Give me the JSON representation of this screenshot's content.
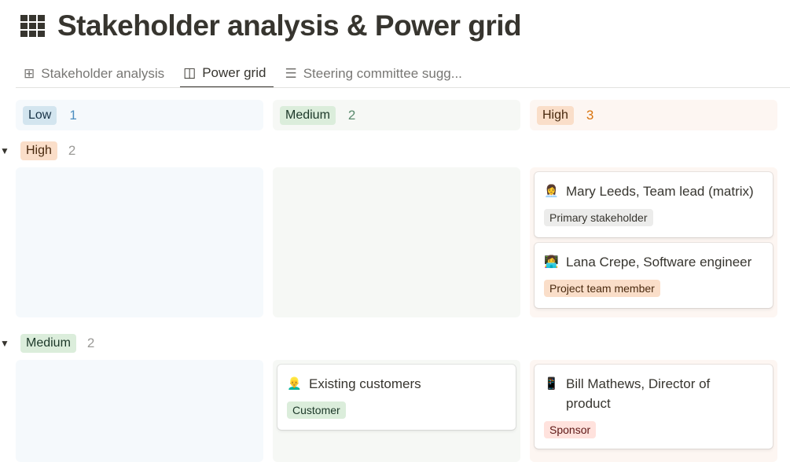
{
  "title": "Stakeholder analysis & Power grid",
  "tabs": [
    {
      "label": "Stakeholder analysis",
      "icon": "table-icon"
    },
    {
      "label": "Power grid",
      "icon": "board-icon",
      "active": true
    },
    {
      "label": "Steering committee sugg...",
      "icon": "list-icon"
    }
  ],
  "columns": [
    {
      "label": "Low",
      "count": "1",
      "bg": "#f5f9fc",
      "pill": "#d3e5ef",
      "text": "#183347",
      "countColor": "#4c8ec0"
    },
    {
      "label": "Medium",
      "count": "2",
      "bg": "#f6f8f5",
      "pill": "#dbeddb",
      "text": "#1c3829",
      "countColor": "#5a8a6d"
    },
    {
      "label": "High",
      "count": "3",
      "bg": "#fdf6f2",
      "pill": "#fadec9",
      "text": "#49290e",
      "countColor": "#d9730d"
    }
  ],
  "groups": [
    {
      "label": "High",
      "count": "2"
    },
    {
      "label": "Medium",
      "count": "2"
    }
  ],
  "cards": {
    "mary": {
      "emoji": "👩‍💼",
      "title": "Mary Leeds, Team lead (matrix)",
      "tag": "Primary stakeholder"
    },
    "lana": {
      "emoji": "👩‍💻",
      "title": "Lana Crepe, Software engineer",
      "tag": "Project team member"
    },
    "customers": {
      "emoji": "👱‍♂️",
      "title": "Existing customers",
      "tag": "Customer"
    },
    "bill": {
      "emoji": "📱",
      "title": "Bill Mathews, Director of product",
      "tag": "Sponsor"
    }
  },
  "tagColors": {
    "Primary stakeholder": "#ececeb",
    "Project team member": "#fadec9",
    "Customer": "#dbeddb",
    "Sponsor": "#ffe2dd"
  }
}
